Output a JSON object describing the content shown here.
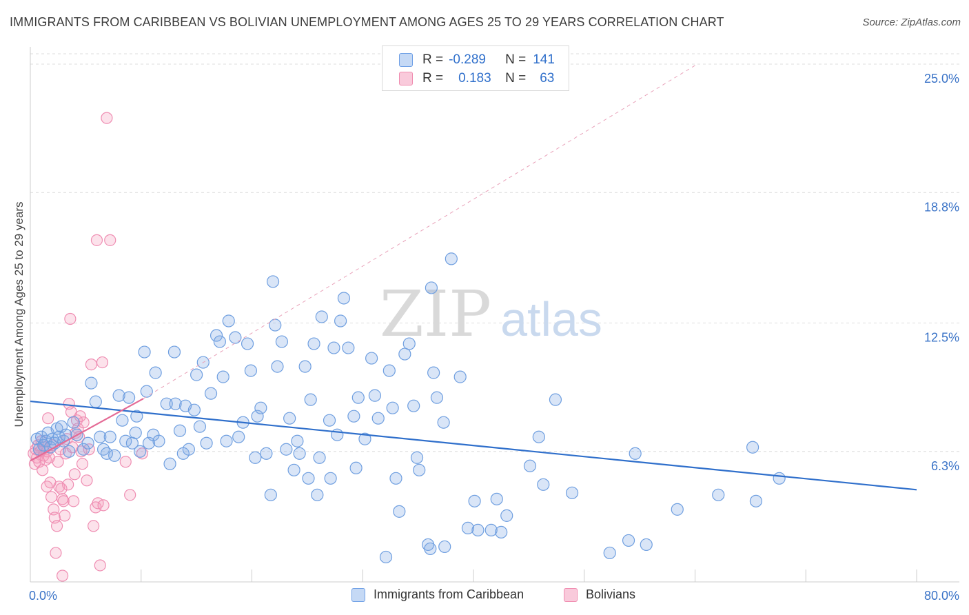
{
  "title": "IMMIGRANTS FROM CARIBBEAN VS BOLIVIAN UNEMPLOYMENT AMONG AGES 25 TO 29 YEARS CORRELATION CHART",
  "source": "Source: ZipAtlas.com",
  "watermark": {
    "zip": "ZIP",
    "atlas": "atlas"
  },
  "legend": {
    "r_label": "R =",
    "n_label": "N =",
    "rows": [
      {
        "name": "Immigrants from Caribbean",
        "r": "-0.289",
        "n": "141",
        "color": "#6fa0e6"
      },
      {
        "name": "Bolivians",
        "r": "0.183",
        "n": "63",
        "color": "#f08cb0"
      }
    ]
  },
  "bottom_legend": [
    "Immigrants from Caribbean",
    "Bolivians"
  ],
  "chart_data": {
    "type": "scatter",
    "title": "IMMIGRANTS FROM CARIBBEAN VS BOLIVIAN UNEMPLOYMENT AMONG AGES 25 TO 29 YEARS CORRELATION CHART",
    "xlabel": "",
    "ylabel": "Unemployment Among Ages 25 to 29 years",
    "xlim": [
      0,
      80
    ],
    "ylim": [
      0,
      25.5
    ],
    "x_tick_labels": [
      {
        "value": 0,
        "label": "0.0%"
      },
      {
        "value": 80,
        "label": "80.0%"
      }
    ],
    "y_tick_labels": [
      {
        "value": 6.3,
        "label": "6.3%"
      },
      {
        "value": 12.5,
        "label": "12.5%"
      },
      {
        "value": 18.8,
        "label": "18.8%"
      },
      {
        "value": 25.0,
        "label": "25.0%"
      }
    ],
    "grid": true,
    "series": [
      {
        "name": "Immigrants from Caribbean",
        "color": "#6fa0e6",
        "trend": {
          "x": [
            0,
            80
          ],
          "y": [
            8.72,
            4.45
          ]
        },
        "points": [
          [
            0.6,
            6.9
          ],
          [
            0.8,
            6.4
          ],
          [
            1.0,
            7.0
          ],
          [
            1.2,
            6.6
          ],
          [
            1.4,
            6.8
          ],
          [
            1.6,
            7.2
          ],
          [
            1.8,
            6.5
          ],
          [
            2.0,
            6.9
          ],
          [
            2.2,
            6.7
          ],
          [
            2.4,
            7.4
          ],
          [
            2.6,
            7.0
          ],
          [
            2.8,
            7.5
          ],
          [
            3.0,
            6.8
          ],
          [
            3.2,
            7.1
          ],
          [
            3.5,
            6.3
          ],
          [
            3.9,
            7.7
          ],
          [
            4.2,
            7.1
          ],
          [
            4.8,
            6.4
          ],
          [
            5.2,
            6.7
          ],
          [
            5.5,
            9.6
          ],
          [
            5.9,
            8.7
          ],
          [
            6.3,
            7.0
          ],
          [
            6.6,
            6.4
          ],
          [
            6.9,
            6.2
          ],
          [
            7.2,
            7.0
          ],
          [
            7.6,
            6.1
          ],
          [
            8.0,
            9.0
          ],
          [
            8.3,
            7.8
          ],
          [
            8.6,
            6.8
          ],
          [
            8.9,
            8.9
          ],
          [
            9.2,
            6.7
          ],
          [
            9.5,
            7.2
          ],
          [
            9.6,
            8.0
          ],
          [
            9.9,
            6.3
          ],
          [
            10.3,
            11.1
          ],
          [
            10.5,
            9.2
          ],
          [
            10.7,
            6.7
          ],
          [
            11.1,
            7.1
          ],
          [
            11.3,
            10.1
          ],
          [
            11.6,
            6.8
          ],
          [
            12.3,
            8.6
          ],
          [
            12.6,
            5.7
          ],
          [
            13.0,
            11.1
          ],
          [
            13.1,
            8.6
          ],
          [
            13.5,
            7.3
          ],
          [
            13.8,
            6.2
          ],
          [
            14.0,
            8.5
          ],
          [
            14.3,
            6.4
          ],
          [
            14.8,
            8.3
          ],
          [
            15.0,
            10.0
          ],
          [
            15.3,
            7.5
          ],
          [
            15.6,
            10.6
          ],
          [
            15.9,
            6.7
          ],
          [
            16.3,
            9.1
          ],
          [
            16.8,
            11.9
          ],
          [
            17.1,
            11.6
          ],
          [
            17.4,
            9.9
          ],
          [
            17.7,
            6.8
          ],
          [
            17.9,
            12.6
          ],
          [
            18.5,
            11.8
          ],
          [
            18.8,
            7.0
          ],
          [
            19.2,
            7.7
          ],
          [
            19.6,
            11.5
          ],
          [
            19.9,
            10.2
          ],
          [
            20.3,
            6.0
          ],
          [
            20.5,
            8.0
          ],
          [
            20.8,
            8.4
          ],
          [
            21.3,
            6.2
          ],
          [
            21.7,
            4.2
          ],
          [
            21.9,
            14.5
          ],
          [
            22.1,
            12.4
          ],
          [
            22.3,
            10.4
          ],
          [
            22.7,
            11.6
          ],
          [
            23.1,
            6.4
          ],
          [
            23.4,
            7.9
          ],
          [
            23.8,
            5.4
          ],
          [
            24.1,
            6.8
          ],
          [
            24.3,
            6.2
          ],
          [
            24.8,
            10.4
          ],
          [
            25.1,
            5.0
          ],
          [
            25.3,
            8.8
          ],
          [
            25.6,
            11.5
          ],
          [
            25.9,
            4.2
          ],
          [
            26.1,
            6.0
          ],
          [
            26.3,
            12.8
          ],
          [
            27.0,
            7.8
          ],
          [
            27.1,
            5.0
          ],
          [
            27.4,
            11.3
          ],
          [
            27.7,
            7.1
          ],
          [
            28.0,
            12.6
          ],
          [
            28.3,
            13.7
          ],
          [
            28.7,
            11.3
          ],
          [
            29.2,
            8.0
          ],
          [
            29.4,
            5.5
          ],
          [
            29.6,
            8.9
          ],
          [
            30.2,
            6.9
          ],
          [
            30.8,
            10.8
          ],
          [
            31.1,
            9.0
          ],
          [
            31.4,
            7.9
          ],
          [
            32.1,
            1.2
          ],
          [
            32.4,
            10.2
          ],
          [
            32.7,
            8.4
          ],
          [
            33.0,
            5.0
          ],
          [
            33.3,
            3.4
          ],
          [
            33.8,
            11.0
          ],
          [
            34.2,
            11.5
          ],
          [
            34.6,
            8.5
          ],
          [
            34.9,
            6.0
          ],
          [
            35.1,
            5.4
          ],
          [
            35.9,
            1.8
          ],
          [
            36.1,
            1.6
          ],
          [
            36.2,
            14.2
          ],
          [
            36.4,
            10.1
          ],
          [
            36.7,
            8.9
          ],
          [
            37.3,
            7.7
          ],
          [
            37.4,
            1.7
          ],
          [
            38.0,
            15.6
          ],
          [
            38.8,
            9.9
          ],
          [
            39.5,
            2.6
          ],
          [
            40.1,
            3.9
          ],
          [
            40.4,
            2.5
          ],
          [
            41.6,
            2.5
          ],
          [
            42.1,
            4.0
          ],
          [
            42.5,
            2.4
          ],
          [
            43.0,
            3.2
          ],
          [
            45.1,
            5.6
          ],
          [
            45.9,
            7.0
          ],
          [
            46.3,
            4.7
          ],
          [
            47.4,
            8.8
          ],
          [
            48.9,
            4.3
          ],
          [
            52.3,
            1.4
          ],
          [
            54.0,
            2.0
          ],
          [
            54.6,
            6.2
          ],
          [
            55.6,
            1.8
          ],
          [
            58.4,
            3.5
          ],
          [
            62.1,
            4.2
          ],
          [
            65.2,
            6.5
          ],
          [
            65.5,
            3.9
          ],
          [
            67.6,
            5.0
          ]
        ]
      },
      {
        "name": "Bolivians",
        "color": "#f08cb0",
        "trend": {
          "x": [
            0,
            10.2
          ],
          "y": [
            5.85,
            8.85
          ]
        },
        "trend_dashed": {
          "x": [
            10.2,
            60.2
          ],
          "y": [
            8.85,
            25.0
          ]
        },
        "points": [
          [
            0.3,
            6.2
          ],
          [
            0.4,
            5.7
          ],
          [
            0.5,
            6.4
          ],
          [
            0.6,
            6.0
          ],
          [
            0.7,
            6.6
          ],
          [
            0.8,
            5.8
          ],
          [
            0.9,
            6.3
          ],
          [
            1.0,
            6.8
          ],
          [
            1.1,
            5.4
          ],
          [
            1.2,
            6.1
          ],
          [
            1.3,
            6.5
          ],
          [
            1.4,
            5.9
          ],
          [
            1.5,
            6.3
          ],
          [
            1.6,
            7.9
          ],
          [
            1.7,
            6.0
          ],
          [
            1.8,
            4.8
          ],
          [
            1.9,
            4.1
          ],
          [
            2.0,
            6.6
          ],
          [
            2.1,
            3.5
          ],
          [
            2.2,
            3.1
          ],
          [
            2.3,
            1.4
          ],
          [
            2.4,
            2.7
          ],
          [
            2.5,
            5.8
          ],
          [
            2.6,
            4.6
          ],
          [
            2.7,
            6.4
          ],
          [
            2.8,
            4.5
          ],
          [
            2.9,
            4.0
          ],
          [
            3.0,
            3.9
          ],
          [
            3.1,
            3.2
          ],
          [
            3.2,
            6.2
          ],
          [
            3.3,
            6.9
          ],
          [
            3.4,
            4.7
          ],
          [
            3.5,
            8.6
          ],
          [
            3.6,
            12.7
          ],
          [
            3.7,
            8.2
          ],
          [
            3.8,
            6.5
          ],
          [
            3.9,
            3.9
          ],
          [
            4.0,
            5.2
          ],
          [
            4.1,
            7.2
          ],
          [
            4.2,
            7.8
          ],
          [
            4.3,
            7.4
          ],
          [
            4.4,
            7.0
          ],
          [
            4.5,
            8.0
          ],
          [
            4.6,
            6.3
          ],
          [
            4.7,
            5.7
          ],
          [
            4.8,
            7.7
          ],
          [
            5.1,
            4.9
          ],
          [
            5.3,
            6.4
          ],
          [
            5.5,
            10.5
          ],
          [
            5.7,
            2.7
          ],
          [
            5.9,
            3.6
          ],
          [
            6.0,
            16.5
          ],
          [
            6.1,
            3.8
          ],
          [
            6.3,
            0.8
          ],
          [
            6.5,
            10.6
          ],
          [
            6.6,
            3.7
          ],
          [
            6.9,
            22.4
          ],
          [
            7.2,
            16.5
          ],
          [
            8.6,
            5.8
          ],
          [
            9.0,
            4.2
          ],
          [
            10.1,
            6.2
          ],
          [
            1.5,
            4.6
          ],
          [
            2.9,
            0.3
          ]
        ]
      }
    ]
  }
}
